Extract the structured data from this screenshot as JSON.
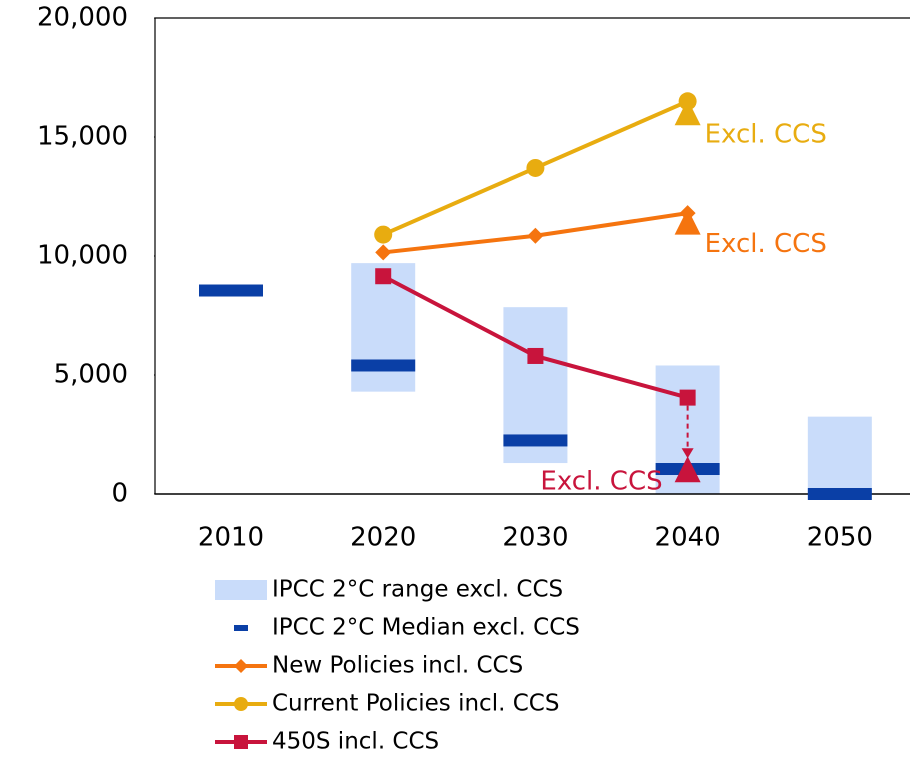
{
  "chart_data": {
    "type": "combo",
    "categories": [
      "2010",
      "2020",
      "2030",
      "2040",
      "2050"
    ],
    "ylim": [
      0,
      20000
    ],
    "yticks": [
      0,
      {
        "value": 5000,
        "label": "5,000"
      },
      {
        "value": 10000,
        "label": "10,000"
      },
      {
        "value": 15000,
        "label": "15,000"
      },
      {
        "value": 20000,
        "label": "20,000"
      }
    ],
    "series": [
      {
        "name": "IPCC 2°C range excl. CCS",
        "kind": "range",
        "color": "#c9dcfa",
        "low": [
          null,
          4300,
          1300,
          0,
          0
        ],
        "high": [
          null,
          9700,
          7850,
          5400,
          3250
        ]
      },
      {
        "name": "IPCC 2°C Median excl. CCS",
        "kind": "median",
        "color": "#0a3fa6",
        "values": [
          8550,
          5400,
          2250,
          1050,
          0
        ]
      },
      {
        "name": "New Policies incl. CCS",
        "kind": "line",
        "marker": "diamond",
        "color": "#f5740f",
        "values": [
          null,
          10150,
          10850,
          11800,
          null
        ]
      },
      {
        "name": "Current Policies incl. CCS",
        "kind": "line",
        "marker": "circle",
        "color": "#e8ac10",
        "values": [
          null,
          10900,
          13700,
          16500,
          null
        ]
      },
      {
        "name": "450S incl. CCS",
        "kind": "line",
        "marker": "square",
        "color": "#c8143c",
        "values": [
          null,
          9150,
          5800,
          4050,
          null
        ]
      }
    ],
    "annotations": [
      {
        "text": "Excl. CCS",
        "x": "2040",
        "value": 16000,
        "color": "#e8ac10"
      },
      {
        "text": "Excl. CCS",
        "x": "2040",
        "value": 11400,
        "color": "#f5740f"
      },
      {
        "text": "Excl. CCS",
        "x": "2040",
        "value": 1000,
        "color": "#c8143c"
      }
    ]
  }
}
